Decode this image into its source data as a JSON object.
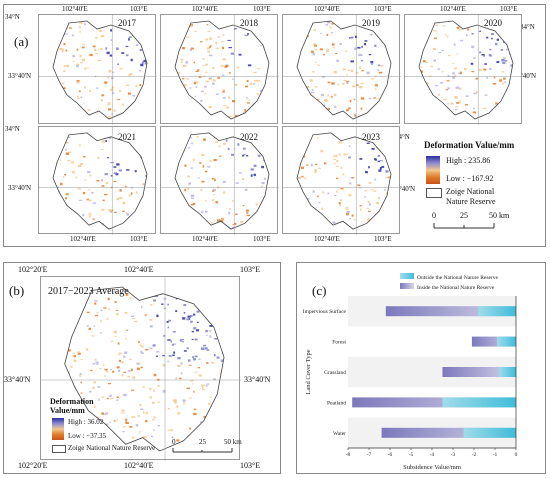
{
  "panel_a": {
    "label": "(a)",
    "years": [
      "2017",
      "2018",
      "2019",
      "2020",
      "2021",
      "2022",
      "2023"
    ],
    "top_axis": {
      "lon_left": "102°40'E",
      "lon_right": "103°E"
    },
    "bottom_axis": {
      "lon_left": "102°40'E",
      "lon_right": "103°E"
    },
    "lat_labels": {
      "north": "34°N",
      "mid": "33°40'N"
    },
    "legend": {
      "title": "Deformation Value/mm",
      "high": "High : 235.86",
      "low": "Low : −167.92",
      "reserve_line1": "Zoige National",
      "reserve_line2": "Nature Reserve",
      "scale_0": "0",
      "scale_25": "25",
      "scale_50": "50 km"
    }
  },
  "panel_b": {
    "label": "(b)",
    "title": "2017−2023 Average",
    "top_lons": [
      "102°20'E",
      "102°40'E",
      "103°E"
    ],
    "bottom_lons": [
      "102°20'E",
      "102°40'E",
      "103°E"
    ],
    "lat_left": "33°40'N",
    "lat_right": "33°40'N",
    "legend": {
      "title_line1": "Deformation",
      "title_line2": "Value/mm",
      "high": "High : 36.02",
      "low": "Low : −37.35",
      "reserve": "Zoige National Nature Reserve",
      "scale_0": "0",
      "scale_25": "25",
      "scale_50": "50 km"
    }
  },
  "panel_c": {
    "label": "(c)"
  },
  "colors": {
    "outside": "#40bcd8",
    "inside": "#9a96c8",
    "high": "#2b2f9e",
    "low": "#d9641c"
  },
  "chart_data": {
    "type": "bar",
    "orientation": "horizontal",
    "categories": [
      "Impervious Surface",
      "Forest",
      "Grassland",
      "Peatland",
      "Water"
    ],
    "series": [
      {
        "name": "Outside the National Nature Reserve",
        "values": [
          -1.8,
          -0.9,
          -0.8,
          -3.5,
          -2.5
        ]
      },
      {
        "name": "Inside the National Nature Reserve",
        "values": [
          -6.2,
          -2.1,
          -3.5,
          -7.8,
          -6.4
        ]
      }
    ],
    "xlabel": "Subsidence Value/mm",
    "ylabel": "Land Cover Type",
    "xticks": [
      "-8",
      "-7",
      "-6",
      "-5",
      "-4",
      "-3",
      "-2",
      "-1",
      "0"
    ],
    "xlim": [
      -8,
      0
    ]
  }
}
